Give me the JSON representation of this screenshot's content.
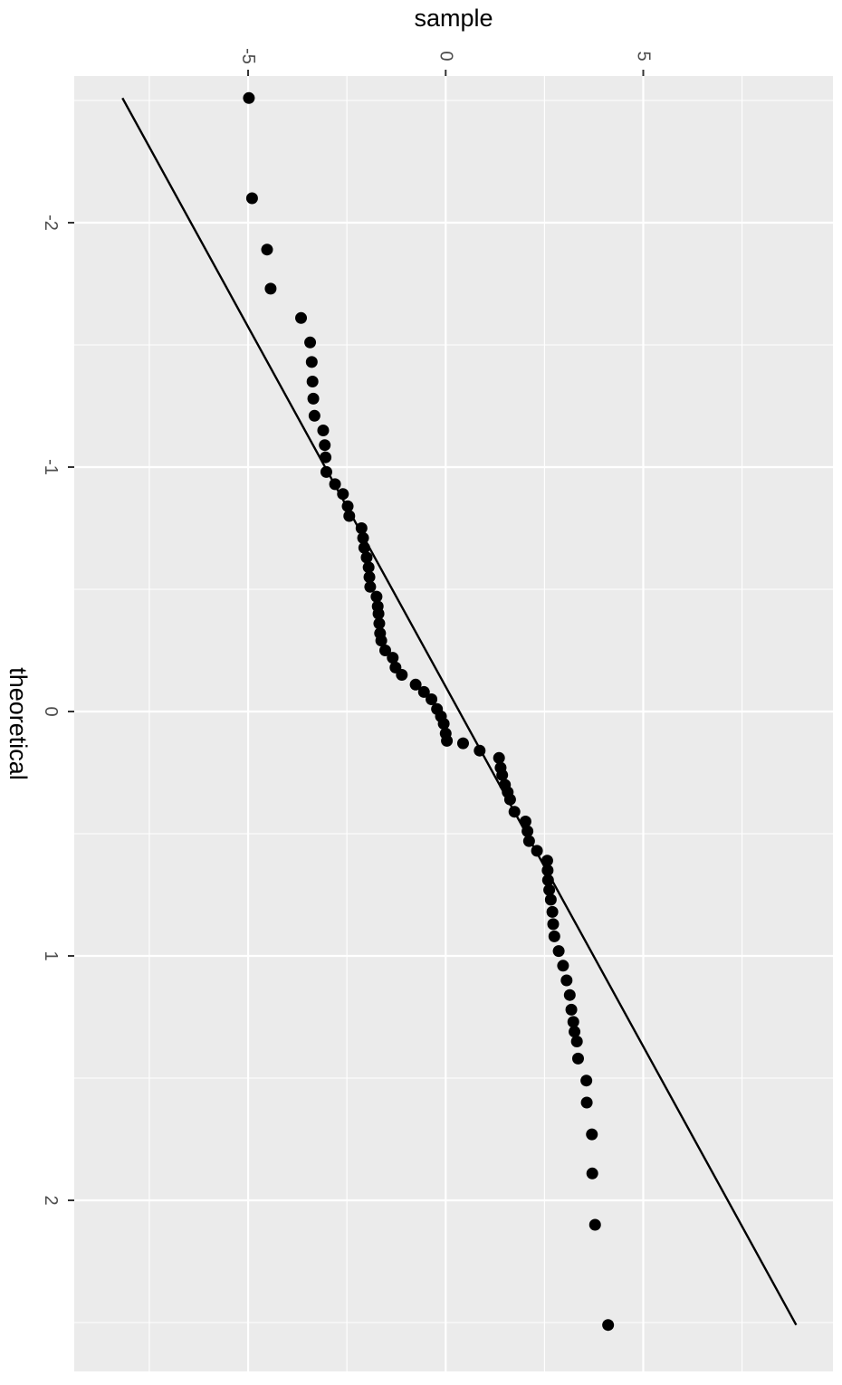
{
  "chart_data": {
    "type": "scatter",
    "title": "",
    "xlabel": "theoretical",
    "ylabel": "sample",
    "xlim": [
      -2.6,
      2.7
    ],
    "ylim": [
      -9.4,
      9.8
    ],
    "x_ticks": [
      -2,
      -1,
      0,
      1,
      2
    ],
    "y_ticks": [
      -5,
      0,
      5
    ],
    "grid": true,
    "legend": "none",
    "colors": {
      "panel": "#ebebeb",
      "grid": "#ffffff",
      "point": "#000000",
      "line": "#000000",
      "tick_text": "#4d4d4d"
    },
    "series": [
      {
        "values": [
          [
            -2.51,
            -4.98
          ],
          [
            -2.1,
            -4.9
          ],
          [
            -1.89,
            -4.52
          ],
          [
            -1.73,
            -4.43
          ],
          [
            -1.61,
            -3.66
          ],
          [
            -1.51,
            -3.43
          ],
          [
            -1.43,
            -3.39
          ],
          [
            -1.35,
            -3.37
          ],
          [
            -1.28,
            -3.35
          ],
          [
            -1.21,
            -3.32
          ],
          [
            -1.15,
            -3.1
          ],
          [
            -1.09,
            -3.06
          ],
          [
            -1.04,
            -3.04
          ],
          [
            -0.98,
            -3.02
          ],
          [
            -0.93,
            -2.8
          ],
          [
            -0.89,
            -2.6
          ],
          [
            -0.84,
            -2.48
          ],
          [
            -0.8,
            -2.44
          ],
          [
            -0.75,
            -2.13
          ],
          [
            -0.71,
            -2.09
          ],
          [
            -0.67,
            -2.06
          ],
          [
            -0.63,
            -2.0
          ],
          [
            -0.59,
            -1.95
          ],
          [
            -0.55,
            -1.93
          ],
          [
            -0.51,
            -1.91
          ],
          [
            -0.47,
            -1.75
          ],
          [
            -0.43,
            -1.72
          ],
          [
            -0.4,
            -1.7
          ],
          [
            -0.36,
            -1.68
          ],
          [
            -0.32,
            -1.66
          ],
          [
            -0.29,
            -1.63
          ],
          [
            -0.25,
            -1.53
          ],
          [
            -0.22,
            -1.34
          ],
          [
            -0.18,
            -1.27
          ],
          [
            -0.15,
            -1.11
          ],
          [
            -0.11,
            -0.76
          ],
          [
            -0.08,
            -0.55
          ],
          [
            -0.05,
            -0.36
          ],
          [
            -0.01,
            -0.22
          ],
          [
            0.02,
            -0.12
          ],
          [
            0.05,
            -0.05
          ],
          [
            0.09,
            0.0
          ],
          [
            0.12,
            0.03
          ],
          [
            0.13,
            0.44
          ],
          [
            0.16,
            0.86
          ],
          [
            0.19,
            1.35
          ],
          [
            0.23,
            1.39
          ],
          [
            0.26,
            1.43
          ],
          [
            0.3,
            1.5
          ],
          [
            0.33,
            1.57
          ],
          [
            0.36,
            1.63
          ],
          [
            0.41,
            1.74
          ],
          [
            0.45,
            2.02
          ],
          [
            0.49,
            2.07
          ],
          [
            0.53,
            2.11
          ],
          [
            0.57,
            2.31
          ],
          [
            0.61,
            2.57
          ],
          [
            0.65,
            2.58
          ],
          [
            0.69,
            2.59
          ],
          [
            0.73,
            2.62
          ],
          [
            0.77,
            2.66
          ],
          [
            0.82,
            2.7
          ],
          [
            0.87,
            2.72
          ],
          [
            0.92,
            2.75
          ],
          [
            0.98,
            2.86
          ],
          [
            1.04,
            2.97
          ],
          [
            1.1,
            3.06
          ],
          [
            1.16,
            3.14
          ],
          [
            1.22,
            3.18
          ],
          [
            1.27,
            3.23
          ],
          [
            1.31,
            3.26
          ],
          [
            1.35,
            3.32
          ],
          [
            1.42,
            3.35
          ],
          [
            1.51,
            3.56
          ],
          [
            1.6,
            3.57
          ],
          [
            1.73,
            3.7
          ],
          [
            1.89,
            3.71
          ],
          [
            2.1,
            3.78
          ],
          [
            2.51,
            4.11
          ]
        ]
      }
    ],
    "reference_line": {
      "from": [
        -2.51,
        -8.18
      ],
      "to": [
        2.51,
        8.87
      ]
    }
  }
}
